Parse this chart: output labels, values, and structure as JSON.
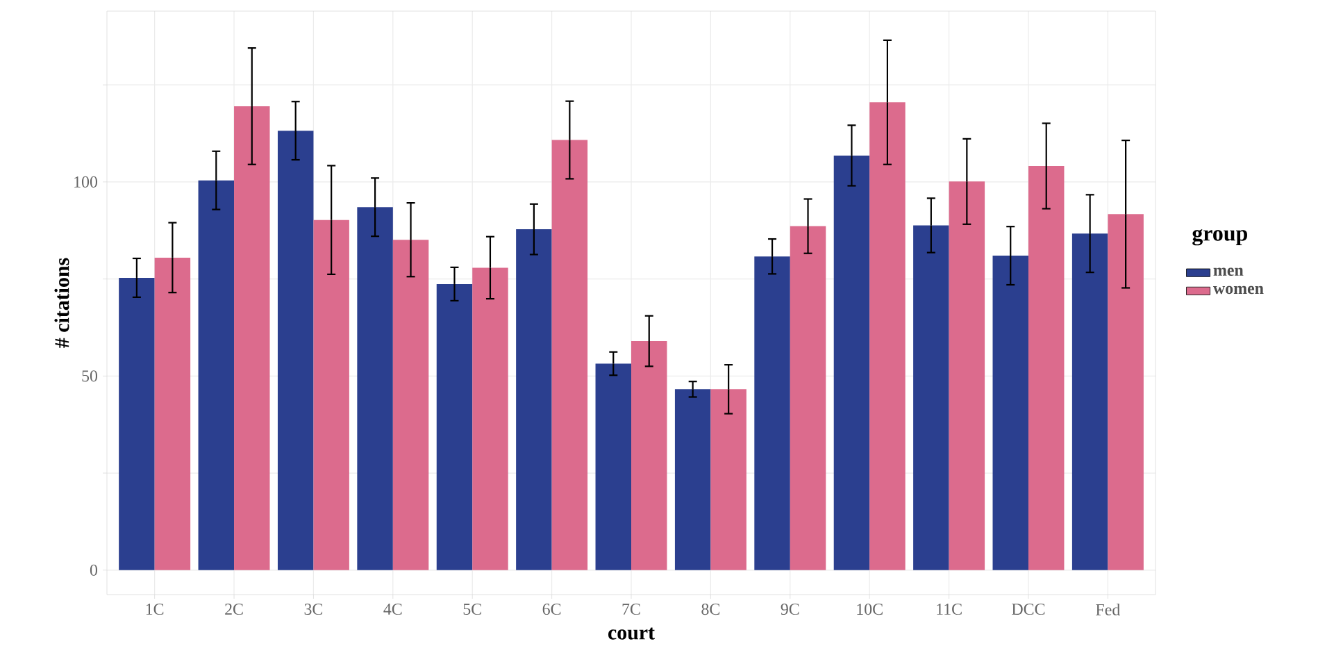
{
  "chart_data": {
    "type": "bar",
    "xlabel": "court",
    "ylabel": "# citations",
    "legend_title": "group",
    "categories": [
      "1C",
      "2C",
      "3C",
      "4C",
      "5C",
      "6C",
      "7C",
      "8C",
      "9C",
      "10C",
      "11C",
      "DCC",
      "Fed"
    ],
    "series": [
      {
        "name": "men",
        "color": "#2b3f8f",
        "values": [
          75.3,
          100.4,
          113.2,
          93.5,
          73.7,
          87.8,
          53.2,
          46.6,
          80.8,
          106.8,
          88.8,
          81,
          86.7
        ],
        "errors": [
          5,
          7.5,
          7.5,
          7.5,
          4.3,
          6.5,
          3,
          2,
          4.5,
          7.8,
          7,
          7.5,
          10
        ]
      },
      {
        "name": "women",
        "color": "#dc6b8d",
        "values": [
          80.5,
          119.5,
          90.2,
          85.1,
          77.9,
          110.8,
          59,
          46.6,
          88.6,
          120.5,
          100.1,
          104.1,
          91.7
        ],
        "errors": [
          9,
          15,
          14,
          9.5,
          8,
          10,
          6.5,
          6.3,
          7,
          16,
          11,
          11,
          19
        ]
      }
    ],
    "ylim": [
      -6.3,
      144
    ],
    "yticks": [
      0,
      {
        "value": 25,
        "label": null
      },
      50,
      {
        "value": 75,
        "label": null
      },
      100,
      {
        "value": 125,
        "label": null
      }
    ],
    "grid": true,
    "legend": "right"
  }
}
